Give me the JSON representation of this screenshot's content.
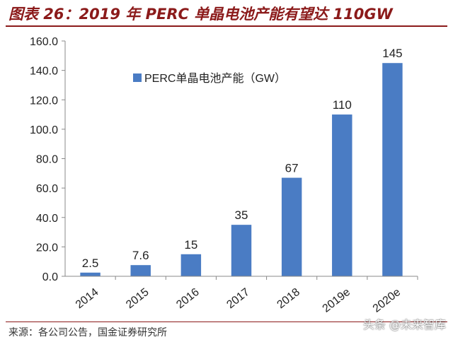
{
  "header": {
    "title": "图表 26：2019 年 PERC 单晶电池产能有望达 110GW"
  },
  "footer": {
    "source": "来源：各公司公告，国金证券研究所",
    "watermark": "头条 @未来智库"
  },
  "colors": {
    "bar": "#4a7cc4",
    "title": "#8b1a1a",
    "axis": "#888888"
  },
  "chart_data": {
    "type": "bar",
    "categories": [
      "2014",
      "2015",
      "2016",
      "2017",
      "2018",
      "2019e",
      "2020e"
    ],
    "series": [
      {
        "name": "PERC单晶电池产能（GW）",
        "values": [
          2.5,
          7.6,
          15,
          35,
          67,
          110,
          145
        ]
      }
    ],
    "data_labels": [
      "2.5",
      "7.6",
      "15",
      "35",
      "67",
      "110",
      "145"
    ],
    "ylim": [
      0,
      160
    ],
    "y_ticks": [
      "0.0",
      "20.0",
      "40.0",
      "60.0",
      "80.0",
      "100.0",
      "120.0",
      "140.0",
      "160.0"
    ],
    "legend_position": "top-left",
    "grid": false
  }
}
